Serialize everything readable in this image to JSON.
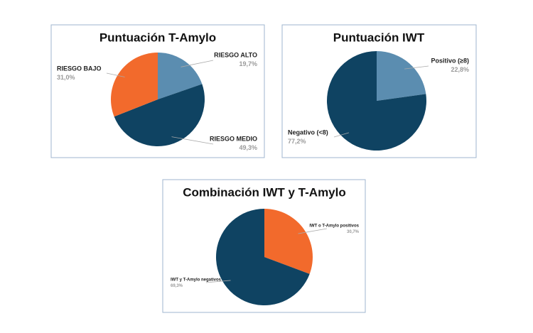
{
  "chart_data": [
    {
      "type": "pie",
      "title": "Puntuación T-Amylo",
      "categories": [
        "RIESGO ALTO",
        "RIESGO MEDIO",
        "RIESGO BAJO"
      ],
      "values": [
        19.7,
        49.3,
        31.0
      ],
      "value_labels": [
        "19,7%",
        "49,3%",
        "31,0%"
      ],
      "colors": [
        "#5b8db0",
        "#0f4362",
        "#f26a2c"
      ]
    },
    {
      "type": "pie",
      "title": "Puntuación IWT",
      "categories": [
        "Positivo (≥8)",
        "Negativo (<8)"
      ],
      "values": [
        22.8,
        77.2
      ],
      "value_labels": [
        "22,8%",
        "77,2%"
      ],
      "colors": [
        "#5b8db0",
        "#0f4362"
      ]
    },
    {
      "type": "pie",
      "title": "Combinación IWT y T-Amylo",
      "categories": [
        "IWT o T-Amylo positivos",
        "IWT y T-Amylo negativos"
      ],
      "values": [
        30.7,
        69.3
      ],
      "value_labels": [
        "30,7%",
        "69,3%"
      ],
      "colors": [
        "#f26a2c",
        "#0f4362"
      ]
    }
  ]
}
